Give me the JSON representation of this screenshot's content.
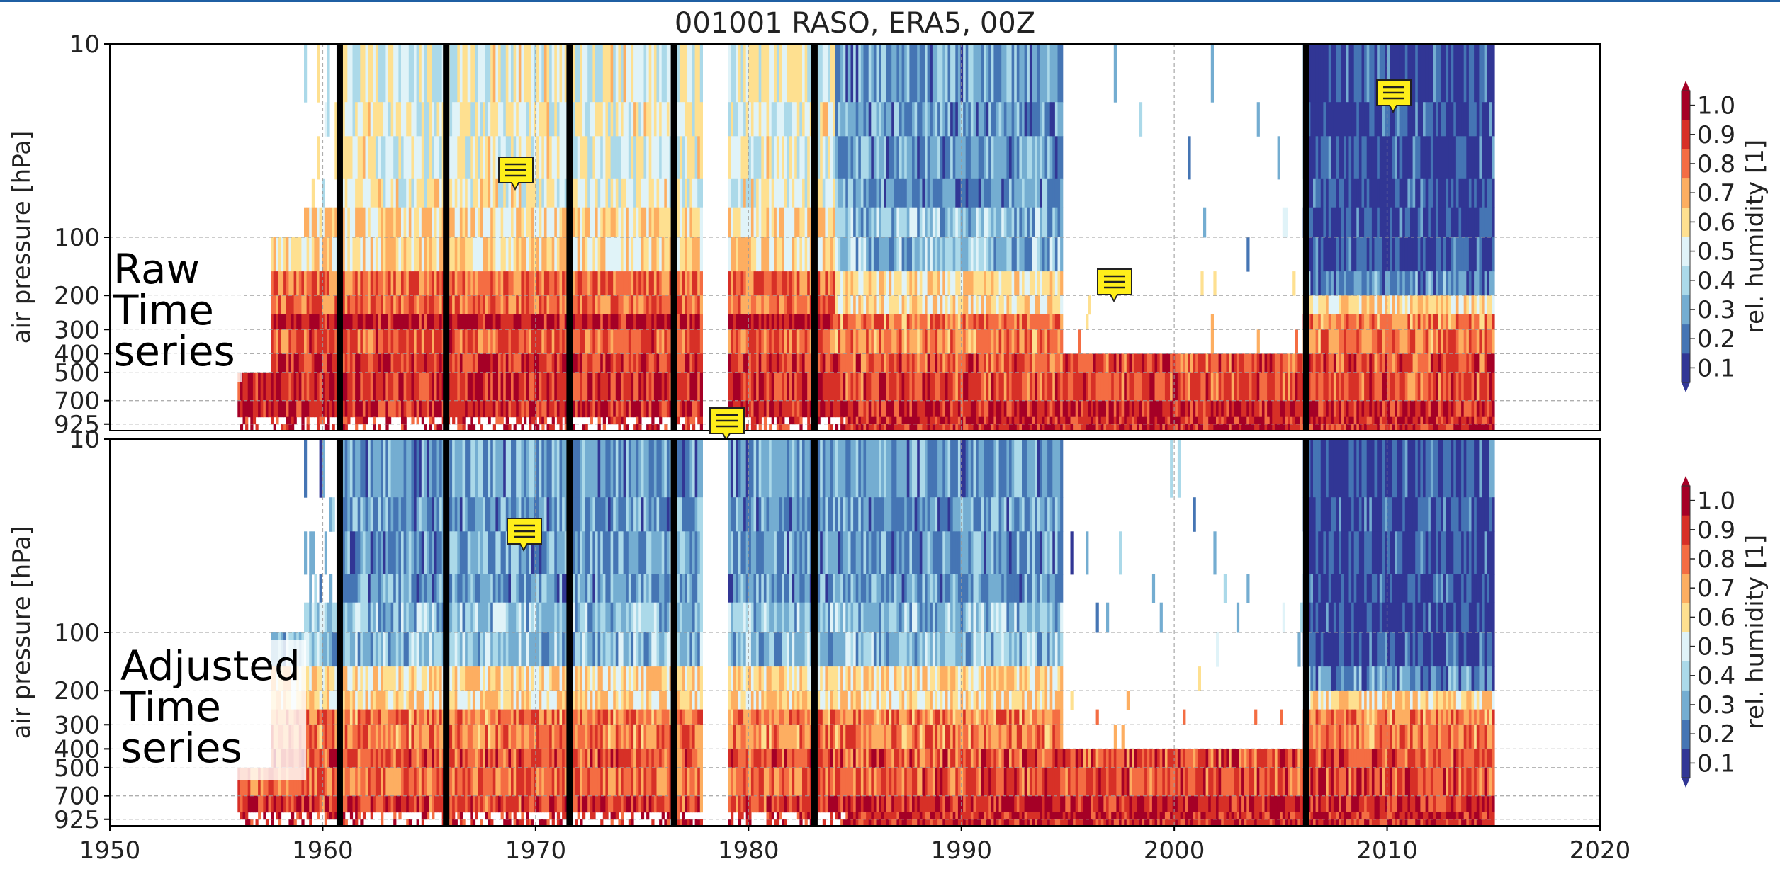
{
  "chart_data": [
    {
      "type": "heatmap",
      "title": "001001 RASO, ERA5, 00Z",
      "panel_label": "Raw\nTime\nseries",
      "xlabel": "",
      "ylabel": "air pressure [hPa]",
      "xlim": [
        1950,
        2020
      ],
      "x_ticks": [
        1950,
        1960,
        1970,
        1980,
        1990,
        2000,
        2010,
        2020
      ],
      "y_scale": "log, inverted",
      "y_ticks": [
        10,
        100,
        200,
        300,
        400,
        500,
        700,
        925
      ],
      "pressure_levels": [
        10,
        20,
        30,
        50,
        70,
        100,
        150,
        200,
        250,
        300,
        400,
        500,
        700,
        850,
        925,
        1000
      ],
      "grid": true,
      "colorbar": {
        "label": "rel. humidity [1]",
        "colormap": "RdYlBu_r",
        "ticks": [
          0.1,
          0.2,
          0.3,
          0.4,
          0.5,
          0.6,
          0.7,
          0.8,
          0.9,
          1.0
        ],
        "colors": [
          "#313695",
          "#4575b4",
          "#74add1",
          "#abd9e9",
          "#e0f3f8",
          "#fee090",
          "#fdae61",
          "#f46d43",
          "#d73027",
          "#a50026"
        ]
      },
      "break_lines_years": [
        1960.8,
        1965.8,
        1971.6,
        1976.5,
        1983.1,
        2006.2
      ],
      "data_coverage_years": [
        1956,
        2015
      ],
      "data_gap_years": [
        [
          1977.8,
          1979.0
        ]
      ],
      "missing_upper_levels_years": [
        [
          1994.7,
          2006.0
        ]
      ],
      "comment_icons": 4
    },
    {
      "type": "heatmap",
      "title": "",
      "panel_label": "Adjusted\nTime\nseries",
      "xlabel": "",
      "ylabel": "air pressure [hPa]",
      "xlim": [
        1950,
        2020
      ],
      "x_ticks": [
        1950,
        1960,
        1970,
        1980,
        1990,
        2000,
        2010,
        2020
      ],
      "y_scale": "log, inverted",
      "y_ticks": [
        10,
        100,
        200,
        300,
        400,
        500,
        700,
        925
      ],
      "pressure_levels": [
        10,
        20,
        30,
        50,
        70,
        100,
        150,
        200,
        250,
        300,
        400,
        500,
        700,
        850,
        925,
        1000
      ],
      "grid": true,
      "colorbar": {
        "label": "rel. humidity [1]",
        "colormap": "RdYlBu_r",
        "ticks": [
          0.1,
          0.2,
          0.3,
          0.4,
          0.5,
          0.6,
          0.7,
          0.8,
          0.9,
          1.0
        ],
        "colors": [
          "#313695",
          "#4575b4",
          "#74add1",
          "#abd9e9",
          "#e0f3f8",
          "#fee090",
          "#fdae61",
          "#f46d43",
          "#d73027",
          "#a50026"
        ]
      },
      "break_lines_years": [
        1960.8,
        1965.8,
        1971.6,
        1976.5,
        1983.1,
        2006.2
      ],
      "data_coverage_years": [
        1956,
        2015
      ],
      "data_gap_years": [
        [
          1977.8,
          1979.0
        ]
      ],
      "missing_upper_levels_years": [
        [
          1994.7,
          2006.0
        ]
      ],
      "comment_icons": 1
    }
  ]
}
